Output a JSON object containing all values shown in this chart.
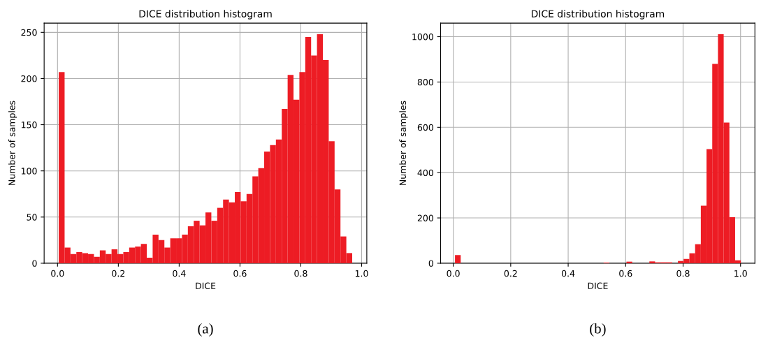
{
  "chart_data": [
    {
      "type": "histogram",
      "title": "DICE distribution histogram",
      "xlabel": "DICE",
      "ylabel": "Number of samples",
      "color": "#ed1c24",
      "bins": [
        0.004,
        0.0233,
        0.0426,
        0.0619,
        0.0812,
        0.1005,
        0.1198,
        0.1391,
        0.1584,
        0.1777,
        0.197,
        0.2163,
        0.2356,
        0.2549,
        0.2742,
        0.2935,
        0.3128,
        0.3321,
        0.3514,
        0.3707,
        0.39,
        0.4093,
        0.4286,
        0.4479,
        0.4672,
        0.4865,
        0.5058,
        0.5251,
        0.5444,
        0.5637,
        0.583,
        0.6023,
        0.6216,
        0.6409,
        0.6602,
        0.6795,
        0.6988,
        0.7181,
        0.7374,
        0.7567,
        0.776,
        0.7953,
        0.8146,
        0.8339,
        0.8532,
        0.8725,
        0.8918,
        0.9111,
        0.9304,
        0.9497,
        0.969
      ],
      "values": [
        207,
        17,
        10,
        12,
        11,
        10,
        7,
        14,
        10,
        15,
        10,
        12,
        17,
        18,
        21,
        6,
        31,
        25,
        17,
        27,
        27,
        31,
        40,
        46,
        41,
        55,
        46,
        60,
        69,
        66,
        77,
        67,
        75,
        94,
        103,
        121,
        128,
        134,
        167,
        204,
        177,
        207,
        245,
        225,
        248,
        220,
        132,
        80,
        29,
        11
      ],
      "xlim": [
        -0.044,
        1.017
      ],
      "ylim": [
        0,
        260
      ],
      "xticks": [
        {
          "value": 0,
          "label": "0.0"
        },
        {
          "value": 0.2,
          "label": "0.2"
        },
        {
          "value": 0.4,
          "label": "0.4"
        },
        {
          "value": 0.6,
          "label": "0.6"
        },
        {
          "value": 0.8,
          "label": "0.8"
        },
        {
          "value": 1,
          "label": "1.0"
        }
      ],
      "yticks": [
        0,
        50,
        100,
        150,
        200,
        250
      ],
      "grid": true,
      "annotations": [
        "(a)"
      ]
    },
    {
      "type": "histogram",
      "title": "DICE distribution histogram",
      "xlabel": "DICE",
      "ylabel": "Number of samples",
      "color": "#ed1c24",
      "bins": [
        0.006,
        0.0259,
        0.0458,
        0.0657,
        0.0856,
        0.1055,
        0.1254,
        0.1453,
        0.1652,
        0.1851,
        0.205,
        0.2249,
        0.2448,
        0.2647,
        0.2846,
        0.3045,
        0.3244,
        0.3443,
        0.3642,
        0.3841,
        0.404,
        0.4239,
        0.4438,
        0.4637,
        0.4836,
        0.5035,
        0.5234,
        0.5433,
        0.5632,
        0.5831,
        0.603,
        0.6229,
        0.6428,
        0.6627,
        0.6826,
        0.7025,
        0.7224,
        0.7423,
        0.7622,
        0.7821,
        0.802,
        0.8219,
        0.8418,
        0.8617,
        0.8816,
        0.9015,
        0.9214,
        0.9413,
        0.9612,
        0.9811,
        1.001
      ],
      "values": [
        36,
        0,
        0,
        0,
        0,
        0,
        0,
        0,
        0,
        0,
        0,
        0,
        0,
        0,
        0,
        0,
        0,
        0,
        0,
        0,
        0,
        0,
        0,
        0,
        0,
        0,
        3,
        0,
        0,
        0,
        7,
        0,
        0,
        0,
        8,
        4,
        4,
        4,
        0,
        10,
        19,
        44,
        84,
        254,
        504,
        880,
        1011,
        621,
        203,
        13
      ],
      "xlim": [
        -0.044,
        1.05
      ],
      "ylim": [
        0,
        1060
      ],
      "xticks": [
        {
          "value": 0,
          "label": "0.0"
        },
        {
          "value": 0.2,
          "label": "0.2"
        },
        {
          "value": 0.4,
          "label": "0.4"
        },
        {
          "value": 0.6,
          "label": "0.6"
        },
        {
          "value": 0.8,
          "label": "0.8"
        },
        {
          "value": 1,
          "label": "1.0"
        }
      ],
      "yticks": [
        0,
        200,
        400,
        600,
        800,
        1000
      ],
      "grid": true,
      "annotations": [
        "(b)"
      ]
    }
  ]
}
